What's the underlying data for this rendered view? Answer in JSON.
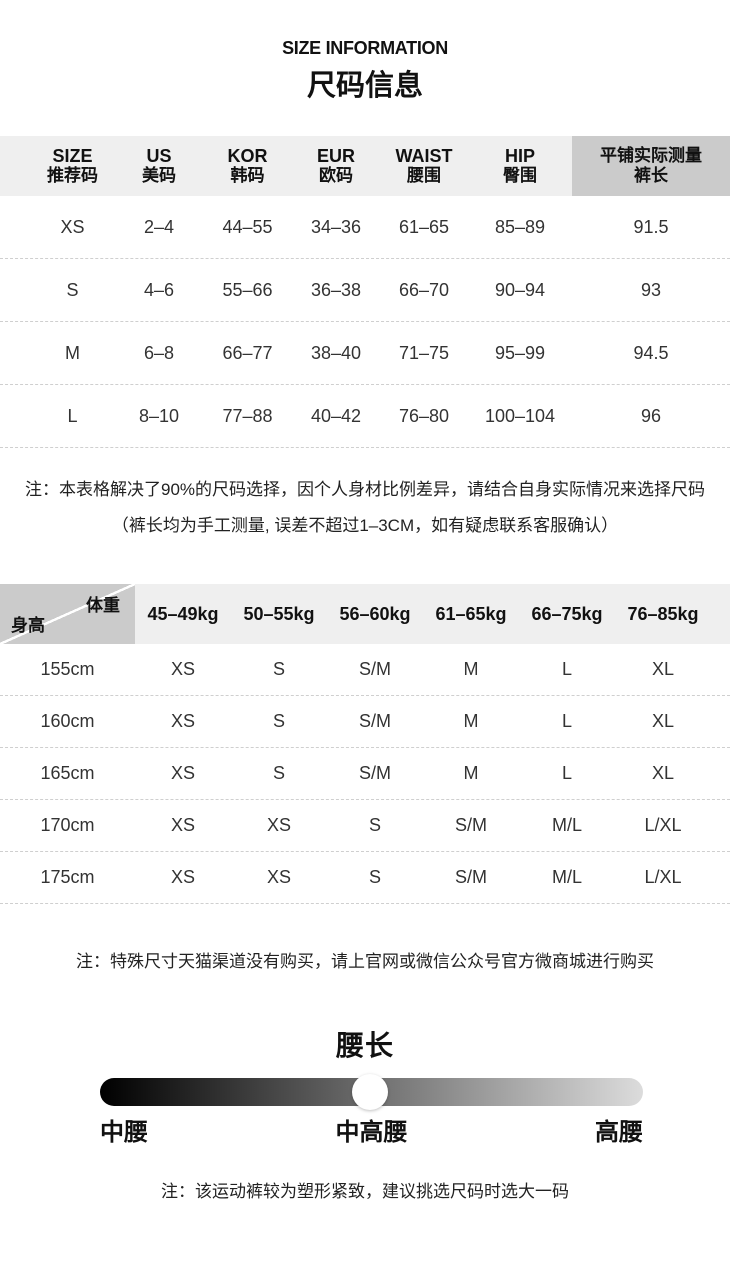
{
  "header": {
    "title_en": "SIZE INFORMATION",
    "title_zh": "尺码信息"
  },
  "size_table": {
    "headers": [
      {
        "top": "SIZE",
        "bottom": "推荐码"
      },
      {
        "top": "US",
        "bottom": "美码"
      },
      {
        "top": "KOR",
        "bottom": "韩码"
      },
      {
        "top": "EUR",
        "bottom": "欧码"
      },
      {
        "top": "WAIST",
        "bottom": "腰围"
      },
      {
        "top": "HIP",
        "bottom": "臀围"
      },
      {
        "top": "平铺实际测量",
        "bottom": "裤长"
      }
    ],
    "rows": [
      [
        "XS",
        "2–4",
        "44–55",
        "34–36",
        "61–65",
        "85–89",
        "91.5"
      ],
      [
        "S",
        "4–6",
        "55–66",
        "36–38",
        "66–70",
        "90–94",
        "93"
      ],
      [
        "M",
        "6–8",
        "66–77",
        "38–40",
        "71–75",
        "95–99",
        "94.5"
      ],
      [
        "L",
        "8–10",
        "77–88",
        "40–42",
        "76–80",
        "100–104",
        "96"
      ]
    ],
    "note_line1": "注：本表格解决了90%的尺码选择，因个人身材比例差异，请结合自身实际情况来选择尺码",
    "note_line2": "（裤长均为手工测量, 误差不超过1–3CM，如有疑虑联系客服确认）"
  },
  "height_weight_table": {
    "corner": {
      "weight_label": "体重",
      "height_label": "身高"
    },
    "weight_headers": [
      "45–49kg",
      "50–55kg",
      "56–60kg",
      "61–65kg",
      "66–75kg",
      "76–85kg"
    ],
    "rows": [
      {
        "height": "155cm",
        "sizes": [
          "XS",
          "S",
          "S/M",
          "M",
          "L",
          "XL"
        ]
      },
      {
        "height": "160cm",
        "sizes": [
          "XS",
          "S",
          "S/M",
          "M",
          "L",
          "XL"
        ]
      },
      {
        "height": "165cm",
        "sizes": [
          "XS",
          "S",
          "S/M",
          "M",
          "L",
          "XL"
        ]
      },
      {
        "height": "170cm",
        "sizes": [
          "XS",
          "XS",
          "S",
          "S/M",
          "M/L",
          "L/XL"
        ]
      },
      {
        "height": "175cm",
        "sizes": [
          "XS",
          "XS",
          "S",
          "S/M",
          "M/L",
          "L/XL"
        ]
      }
    ],
    "note": "注：特殊尺寸天猫渠道没有购买，请上官网或微信公众号官方微商城进行购买"
  },
  "waist_rise": {
    "title": "腰长",
    "labels": [
      "中腰",
      "中高腰",
      "高腰"
    ],
    "marker_position_pct": 49.7,
    "gradient_start": "#000000",
    "gradient_end": "#dcdcdc",
    "note": "注：该运动裤较为塑形紧致，建议挑选尺码时选大一码"
  },
  "colors": {
    "header_bg": "#efefef",
    "header_dark_bg": "#cbcbcb",
    "divider": "#cfcfcf",
    "text_primary": "#111111",
    "text_secondary": "#333333"
  }
}
